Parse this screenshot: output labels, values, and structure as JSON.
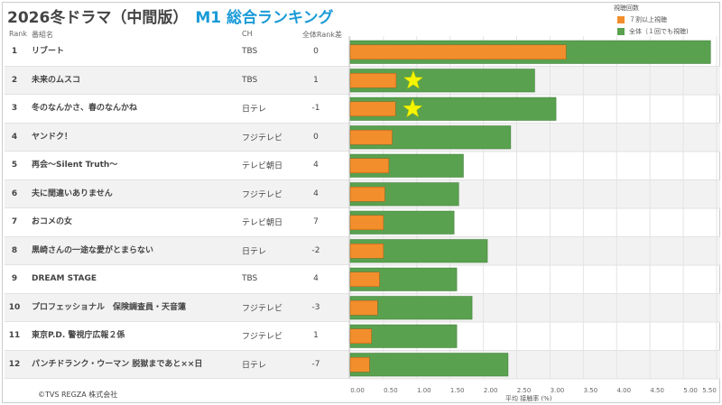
{
  "title": {
    "main": "2026冬ドラマ（中間版）",
    "accent": "M1 総合ランキング"
  },
  "headers": {
    "rank": "Rank",
    "name": "番組名",
    "ch": "CH",
    "diff": "全体Rank差"
  },
  "legend": {
    "title": "視聴回数",
    "items": [
      {
        "label": "７割以上視聴",
        "color": "#f28e2b"
      },
      {
        "label": "全体（１回でも視聴)",
        "color": "#59a14f"
      }
    ]
  },
  "footer": "©TVS REGZA 株式会社",
  "rows": [
    {
      "rank": "1",
      "name": "リブート",
      "ch": "TBS",
      "diff": "0"
    },
    {
      "rank": "2",
      "name": "未来のムスコ",
      "ch": "TBS",
      "diff": "1"
    },
    {
      "rank": "3",
      "name": "冬のなんかさ、春のなんかね",
      "ch": "日テレ",
      "diff": "-1"
    },
    {
      "rank": "4",
      "name": "ヤンドク！",
      "ch": "フジテレビ",
      "diff": "0"
    },
    {
      "rank": "5",
      "name": "再会～Silent Truth～",
      "ch": "テレビ朝日",
      "diff": "4"
    },
    {
      "rank": "6",
      "name": "夫に間違いありません",
      "ch": "フジテレビ",
      "diff": "4"
    },
    {
      "rank": "7",
      "name": "おコメの女",
      "ch": "テレビ朝日",
      "diff": "7"
    },
    {
      "rank": "8",
      "name": "黒崎さんの一途な愛がとまらない",
      "ch": "日テレ",
      "diff": "-2"
    },
    {
      "rank": "9",
      "name": "DREAM STAGE",
      "ch": "TBS",
      "diff": "4"
    },
    {
      "rank": "10",
      "name": "プロフェッショナル　保険調査員・天音蓮",
      "ch": "フジテレビ",
      "diff": "-3"
    },
    {
      "rank": "11",
      "name": "東京P.D. 警視庁広報２係",
      "ch": "フジテレビ",
      "diff": "1"
    },
    {
      "rank": "12",
      "name": "パンチドランク・ウーマン 脱獄まであと××日",
      "ch": "日テレ",
      "diff": "-7"
    }
  ],
  "chart_data": {
    "type": "bar",
    "orientation": "horizontal",
    "xlabel": "平均 接触率 (%)",
    "xlim": [
      0,
      5.5
    ],
    "xticks": [
      "0.00",
      "0.50",
      "1.00",
      "1.50",
      "2.00",
      "2.50",
      "3.00",
      "3.50",
      "4.00",
      "4.50",
      "5.00",
      "5.50"
    ],
    "grid": true,
    "legend_position": "top-right",
    "series": [
      {
        "name": "全体（１回でも視聴)",
        "color": "#59a14f",
        "values": [
          5.41,
          2.77,
          3.09,
          2.41,
          1.7,
          1.63,
          1.56,
          2.06,
          1.6,
          1.83,
          1.6,
          2.37
        ]
      },
      {
        "name": "７割以上視聴",
        "color": "#f28e2b",
        "values": [
          3.24,
          0.69,
          0.68,
          0.63,
          0.58,
          0.52,
          0.5,
          0.5,
          0.44,
          0.41,
          0.32,
          0.29
        ]
      }
    ],
    "star_marks": [
      false,
      true,
      true,
      false,
      false,
      false,
      false,
      false,
      false,
      false,
      false,
      false
    ]
  }
}
